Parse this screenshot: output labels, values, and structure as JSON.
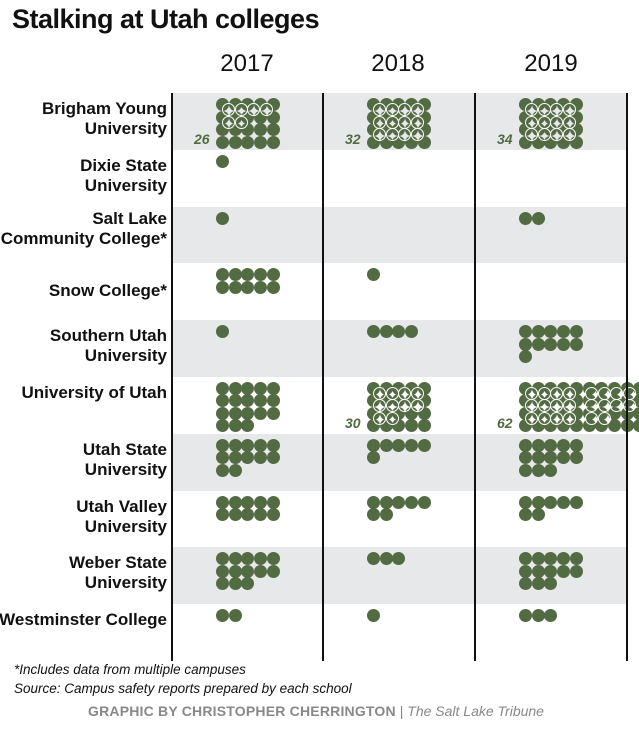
{
  "chart_data": {
    "type": "pictogram",
    "title": "Stalking at Utah colleges",
    "years": [
      "2017",
      "2018",
      "2019"
    ],
    "rows": [
      {
        "label": "Brigham Young University",
        "values": [
          26,
          32,
          34
        ]
      },
      {
        "label": "Dixie State University",
        "values": [
          1,
          0,
          0
        ]
      },
      {
        "label": "Salt Lake Community College*",
        "values": [
          1,
          0,
          2
        ]
      },
      {
        "label": "Snow College*",
        "values": [
          10,
          1,
          0
        ]
      },
      {
        "label": "Southern Utah University",
        "values": [
          1,
          4,
          11
        ]
      },
      {
        "label": "University of Utah",
        "values": [
          18,
          30,
          62
        ]
      },
      {
        "label": "Utah State University",
        "values": [
          12,
          6,
          13
        ]
      },
      {
        "label": "Utah Valley University",
        "values": [
          10,
          7,
          7
        ]
      },
      {
        "label": "Weber State University",
        "values": [
          13,
          3,
          13
        ]
      },
      {
        "label": "Westminster College",
        "values": [
          2,
          1,
          3
        ]
      }
    ],
    "dot_color": "#536b43"
  },
  "notes": {
    "footnote": "*Includes data from multiple campuses",
    "source": "Source: Campus safety reports prepared by each school"
  },
  "credit": {
    "byline": "GRAPHIC BY CHRISTOPHER CHERRINGTON",
    "sep": "|",
    "outlet": "The Salt Lake Tribune"
  }
}
